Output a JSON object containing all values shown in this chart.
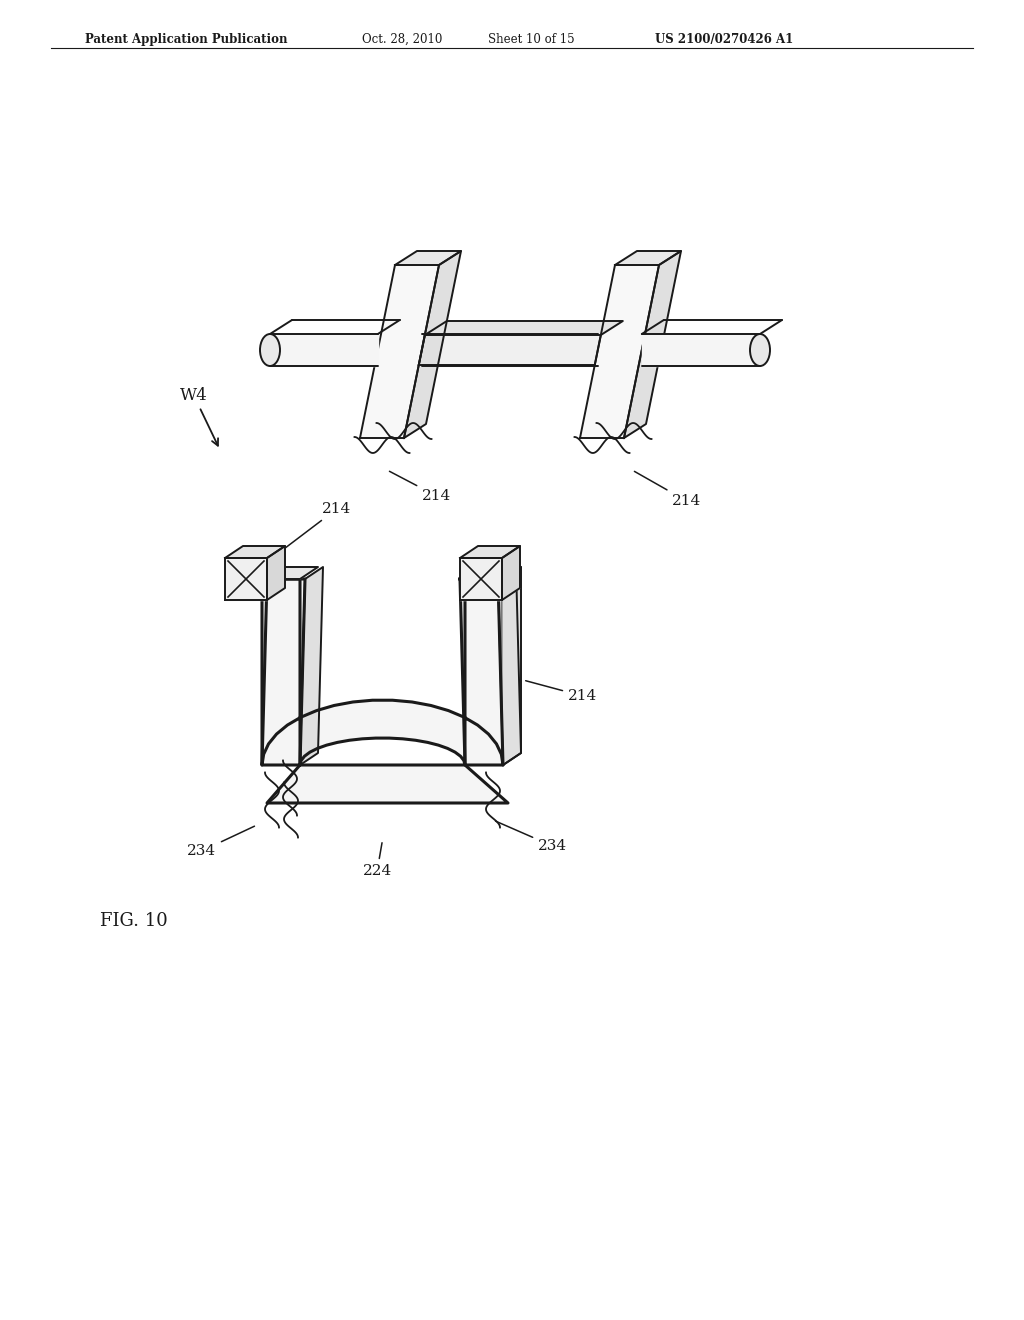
{
  "bg_color": "#ffffff",
  "line_color": "#1a1a1a",
  "header_text": "Patent Application Publication",
  "header_date": "Oct. 28, 2010",
  "header_sheet": "Sheet 10 of 15",
  "header_patent": "US 2100/0270426 A1",
  "fig_label": "FIG. 10",
  "label_W4": "W4",
  "label_214": "214",
  "label_224": "224",
  "label_234": "234"
}
